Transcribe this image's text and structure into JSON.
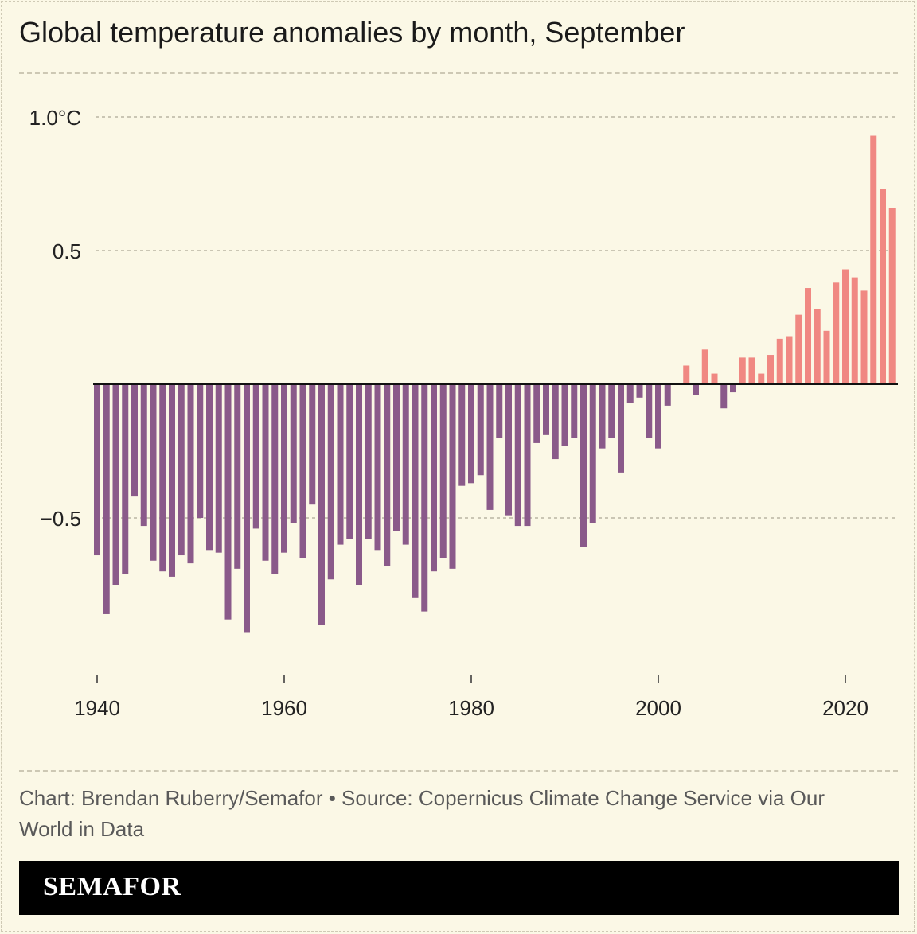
{
  "title": "Global temperature anomalies by month, September",
  "credit": "Chart: Brendan Ruberry/Semafor • Source: Copernicus Climate Change Service via Our World in Data",
  "brand": "SEMAFOR",
  "colors": {
    "negative": "#8a5a8a",
    "positive": "#f08882",
    "background": "#fbf8e6"
  },
  "chart_data": {
    "type": "bar",
    "title": "Global temperature anomalies by month, September",
    "xlabel": "",
    "ylabel": "",
    "ylim": [
      -1.0,
      1.0
    ],
    "grid": true,
    "y_ticks": [
      {
        "value": 1.0,
        "label": "1.0°C"
      },
      {
        "value": 0.5,
        "label": "0.5"
      },
      {
        "value": -0.5,
        "label": "−0.5"
      }
    ],
    "x_ticks": [
      {
        "value": 1940,
        "label": "1940"
      },
      {
        "value": 1960,
        "label": "1960"
      },
      {
        "value": 1980,
        "label": "1980"
      },
      {
        "value": 2000,
        "label": "2000"
      },
      {
        "value": 2020,
        "label": "2020"
      }
    ],
    "x": [
      1940,
      1941,
      1942,
      1943,
      1944,
      1945,
      1946,
      1947,
      1948,
      1949,
      1950,
      1951,
      1952,
      1953,
      1954,
      1955,
      1956,
      1957,
      1958,
      1959,
      1960,
      1961,
      1962,
      1963,
      1964,
      1965,
      1966,
      1967,
      1968,
      1969,
      1970,
      1971,
      1972,
      1973,
      1974,
      1975,
      1976,
      1977,
      1978,
      1979,
      1980,
      1981,
      1982,
      1983,
      1984,
      1985,
      1986,
      1987,
      1988,
      1989,
      1990,
      1991,
      1992,
      1993,
      1994,
      1995,
      1996,
      1997,
      1998,
      1999,
      2000,
      2001,
      2002,
      2003,
      2004,
      2005,
      2006,
      2007,
      2008,
      2009,
      2010,
      2011,
      2012,
      2013,
      2014,
      2015,
      2016,
      2017,
      2018,
      2019,
      2020,
      2021,
      2022,
      2023,
      2024,
      2025
    ],
    "values": [
      -0.64,
      -0.86,
      -0.75,
      -0.71,
      -0.42,
      -0.53,
      -0.66,
      -0.7,
      -0.72,
      -0.64,
      -0.67,
      -0.5,
      -0.62,
      -0.63,
      -0.88,
      -0.69,
      -0.93,
      -0.54,
      -0.66,
      -0.71,
      -0.63,
      -0.52,
      -0.65,
      -0.45,
      -0.9,
      -0.73,
      -0.6,
      -0.58,
      -0.75,
      -0.58,
      -0.62,
      -0.68,
      -0.55,
      -0.6,
      -0.8,
      -0.85,
      -0.7,
      -0.65,
      -0.69,
      -0.38,
      -0.37,
      -0.34,
      -0.47,
      -0.2,
      -0.49,
      -0.53,
      -0.53,
      -0.22,
      -0.19,
      -0.28,
      -0.23,
      -0.2,
      -0.61,
      -0.52,
      -0.24,
      -0.2,
      -0.33,
      -0.07,
      -0.05,
      -0.2,
      -0.24,
      -0.08,
      0.005,
      0.07,
      -0.04,
      0.13,
      0.04,
      -0.09,
      -0.03,
      0.1,
      0.1,
      0.04,
      0.11,
      0.17,
      0.18,
      0.26,
      0.36,
      0.28,
      0.2,
      0.38,
      0.43,
      0.4,
      0.35,
      0.93,
      0.73,
      0.66
    ]
  }
}
